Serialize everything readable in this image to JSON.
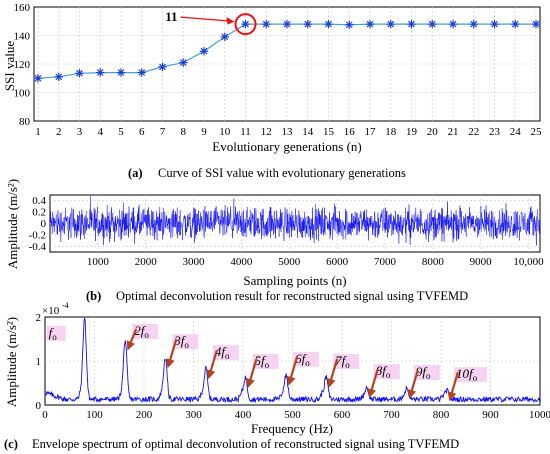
{
  "colors": {
    "line": "#1a3fd6",
    "trace": "#1010ee",
    "highlight": "#ee1111",
    "arrow": "#b5431f",
    "label_bg": "#f2c8ee"
  },
  "chart_data": [
    {
      "type": "line",
      "panel_tag": "(a)",
      "caption": "Curve of SSI value with evolutionary generations",
      "xlabel": "Evolutionary generations (n)",
      "ylabel": "SSI value",
      "x": [
        1,
        2,
        3,
        4,
        5,
        6,
        7,
        8,
        9,
        10,
        11,
        12,
        13,
        14,
        15,
        16,
        17,
        18,
        19,
        20,
        21,
        22,
        23,
        24,
        25
      ],
      "values": [
        110,
        111,
        113.5,
        114,
        114,
        114,
        118,
        121,
        129,
        139,
        148,
        148,
        148,
        148,
        148,
        147.5,
        148,
        148,
        148,
        148,
        148,
        148,
        148,
        148,
        148
      ],
      "xlim": [
        1,
        25
      ],
      "ylim": [
        80,
        160
      ],
      "yticks": [
        80,
        100,
        120,
        140,
        160
      ],
      "xticks": [
        "1",
        "2",
        "3",
        "4",
        "5",
        "6",
        "7",
        "8",
        "9",
        "10",
        "11",
        "12",
        "13",
        "14",
        "15",
        "16",
        "17",
        "18",
        "19",
        "20",
        "21",
        "22",
        "23",
        "24",
        "25"
      ],
      "marker": "asterisk",
      "annotation": {
        "text": "11",
        "x": 11,
        "y": 148
      }
    },
    {
      "type": "line",
      "panel_tag": "(b)",
      "caption": "Optimal deconvolution result for reconstructed signal using TVFEMD",
      "xlabel": "Sampling points (n)",
      "ylabel": "Amplitude (m/s²)",
      "xlim": [
        0,
        10240
      ],
      "ylim": [
        -0.5,
        0.5
      ],
      "yticks": [
        "0.4",
        "0.2",
        "0",
        "-0.2",
        "-0.4"
      ],
      "xticks": [
        "1000",
        "2000",
        "3000",
        "4000",
        "5000",
        "6000",
        "7000",
        "8000",
        "9000",
        "10,000"
      ],
      "signal": "broadband noise-like vibration, amplitude about ±0.45"
    },
    {
      "type": "line",
      "panel_tag": "(c)",
      "caption": "Envelope spectrum of optimal deconvolution of reconstructed signal using TVFEMD",
      "xlabel": "Frequency (Hz)",
      "ylabel": "Amplitude (m/s²)",
      "scale_label": "×10",
      "scale_exp": "-4",
      "xlim": [
        0,
        1000
      ],
      "ylim": [
        0,
        2
      ],
      "yticks": [
        "0",
        "1",
        "2"
      ],
      "xticks": [
        "0",
        "100",
        "200",
        "300",
        "400",
        "500",
        "600",
        "700",
        "800",
        "900",
        "1000"
      ],
      "peaks": [
        {
          "label": "f",
          "sub": "o",
          "x": 80,
          "y": 1.85
        },
        {
          "label": "2f",
          "sub": "o",
          "x": 162,
          "y": 1.35
        },
        {
          "label": "3f",
          "sub": "o",
          "x": 243,
          "y": 0.95
        },
        {
          "label": "4f",
          "sub": "o",
          "x": 325,
          "y": 0.7
        },
        {
          "label": "5f",
          "sub": "o",
          "x": 405,
          "y": 0.5
        },
        {
          "label": "6f",
          "sub": "o",
          "x": 487,
          "y": 0.55
        },
        {
          "label": "7f",
          "sub": "o",
          "x": 568,
          "y": 0.5
        },
        {
          "label": "8f",
          "sub": "o",
          "x": 650,
          "y": 0.27
        },
        {
          "label": "9f",
          "sub": "o",
          "x": 731,
          "y": 0.25
        },
        {
          "label": "10f",
          "sub": "o",
          "x": 812,
          "y": 0.2
        }
      ]
    }
  ]
}
